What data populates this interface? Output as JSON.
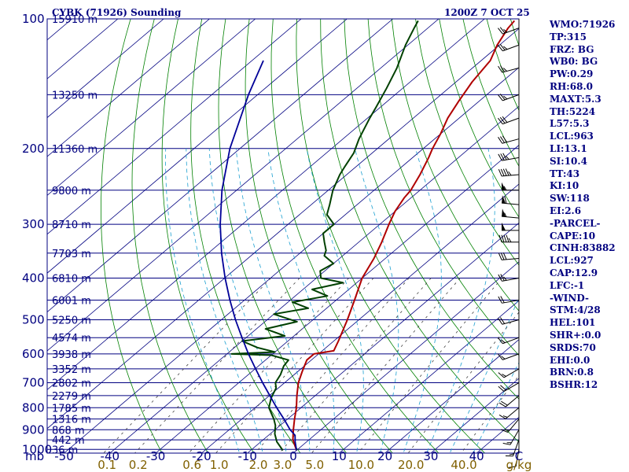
{
  "header": {
    "station": "CYBK (71926) Sounding",
    "time": "1200Z  7 OCT 25"
  },
  "indices": [
    "WMO:71926",
    "TP:315",
    "FRZ: BG",
    "WB0: BG",
    "PW:0.29",
    "RH:68.0",
    "MAXT:5.3",
    "TH:5224",
    "L57:5.3",
    "LCL:963",
    "LI:13.1",
    "SI:10.4",
    "TT:43",
    "KI:10",
    "SW:118",
    "EI:2.6",
    "-PARCEL-",
    "CAPE:10",
    "CINH:83882",
    "LCL:927",
    "CAP:12.9",
    "LFC:-1",
    "-WIND-",
    "STM:4/28",
    "HEL:101",
    "SHR+:0.0",
    "SRDS:70",
    "EHI:0.0",
    "BRN:0.8",
    "BSHR:12"
  ],
  "chart_data": {
    "type": "line",
    "chart_kind": "skew-T log-P sounding",
    "y_axis_unit": "mb",
    "y_axis_scale": "log",
    "y_ticks": [
      "100",
      "200",
      "300",
      "400",
      "500",
      "600",
      "700",
      "800",
      "900",
      "1000"
    ],
    "x_axis_title": "C",
    "x_ticks": [
      "-50",
      "-40",
      "-30",
      "-20",
      "-10",
      "0",
      "10",
      "20",
      "30",
      "40"
    ],
    "mixing_ratio_unit": "g/kg",
    "mixing_ratio_ticks": [
      "0.1",
      "0.2",
      "0.6",
      "1.0",
      "2.0",
      "3.0",
      "5.0",
      "10.0",
      "20.0",
      "40.0"
    ],
    "height_labels": [
      {
        "p": 100,
        "label": "15910 m"
      },
      {
        "p": 150,
        "label": "13250 m"
      },
      {
        "p": 200,
        "label": "11360 m"
      },
      {
        "p": 250,
        "label": "9800 m"
      },
      {
        "p": 300,
        "label": "8710 m"
      },
      {
        "p": 350,
        "label": "7703 m"
      },
      {
        "p": 400,
        "label": "6810 m"
      },
      {
        "p": 450,
        "label": "6001 m"
      },
      {
        "p": 500,
        "label": "5250 m"
      },
      {
        "p": 550,
        "label": "4574 m"
      },
      {
        "p": 600,
        "label": "3938 m"
      },
      {
        "p": 650,
        "label": "3352 m"
      },
      {
        "p": 700,
        "label": "2802 m"
      },
      {
        "p": 750,
        "label": "2279 m"
      },
      {
        "p": 800,
        "label": "1785 m"
      },
      {
        "p": 850,
        "label": "1316 m"
      },
      {
        "p": 900,
        "label": "868 m"
      },
      {
        "p": 950,
        "label": "442 m"
      },
      {
        "p": 1000,
        "label": "36 m"
      }
    ],
    "series": [
      {
        "role": "temperature",
        "color": "#b00000",
        "points": [
          [
            1005,
            0.0
          ],
          [
            950,
            -3.5
          ],
          [
            900,
            -6.0
          ],
          [
            850,
            -8.5
          ],
          [
            800,
            -11.0
          ],
          [
            750,
            -14.0
          ],
          [
            700,
            -17.0
          ],
          [
            660,
            -19.0
          ],
          [
            620,
            -21.0
          ],
          [
            600,
            -21.0
          ],
          [
            590,
            -17.5
          ],
          [
            560,
            -19.0
          ],
          [
            500,
            -22.5
          ],
          [
            450,
            -26.0
          ],
          [
            400,
            -30.0
          ],
          [
            360,
            -32.5
          ],
          [
            330,
            -35.0
          ],
          [
            300,
            -38.0
          ],
          [
            280,
            -40.0
          ],
          [
            260,
            -41.5
          ],
          [
            250,
            -42.0
          ],
          [
            230,
            -44.0
          ],
          [
            210,
            -46.5
          ],
          [
            200,
            -48.0
          ],
          [
            185,
            -50.0
          ],
          [
            170,
            -52.5
          ],
          [
            155,
            -54.5
          ],
          [
            140,
            -56.5
          ],
          [
            125,
            -58.0
          ],
          [
            115,
            -60.5
          ],
          [
            105,
            -62.5
          ],
          [
            101,
            -63.0
          ]
        ]
      },
      {
        "role": "dewpoint",
        "color": "#004000",
        "points": [
          [
            1005,
            -3.0
          ],
          [
            960,
            -6.5
          ],
          [
            920,
            -9.0
          ],
          [
            880,
            -11.0
          ],
          [
            850,
            -13.0
          ],
          [
            800,
            -17.0
          ],
          [
            760,
            -19.0
          ],
          [
            720,
            -20.5
          ],
          [
            700,
            -22.0
          ],
          [
            670,
            -23.0
          ],
          [
            640,
            -24.5
          ],
          [
            620,
            -25.0
          ],
          [
            604,
            -30.0
          ],
          [
            600,
            -39.0
          ],
          [
            594,
            -30.0
          ],
          [
            580,
            -35.0
          ],
          [
            560,
            -40.0
          ],
          [
            545,
            -32.0
          ],
          [
            525,
            -38.0
          ],
          [
            505,
            -33.0
          ],
          [
            485,
            -40.0
          ],
          [
            470,
            -34.0
          ],
          [
            455,
            -39.0
          ],
          [
            440,
            -33.0
          ],
          [
            425,
            -38.0
          ],
          [
            410,
            -33.0
          ],
          [
            400,
            -39.0
          ],
          [
            385,
            -41.0
          ],
          [
            370,
            -40.0
          ],
          [
            355,
            -44.0
          ],
          [
            345,
            -45.0
          ],
          [
            330,
            -47.5
          ],
          [
            315,
            -50.0
          ],
          [
            300,
            -50.0
          ],
          [
            285,
            -54.0
          ],
          [
            270,
            -56.0
          ],
          [
            250,
            -59.0
          ],
          [
            230,
            -61.5
          ],
          [
            220,
            -62.5
          ],
          [
            205,
            -64.0
          ],
          [
            190,
            -66.5
          ],
          [
            170,
            -69.5
          ],
          [
            160,
            -71.0
          ],
          [
            145,
            -73.5
          ],
          [
            130,
            -76.5
          ],
          [
            115,
            -80.5
          ],
          [
            105,
            -83.0
          ],
          [
            101,
            -84.0
          ]
        ]
      },
      {
        "role": "parcel",
        "color": "#000098",
        "points": [
          [
            1005,
            0.0
          ],
          [
            960,
            -2.5
          ],
          [
            927,
            -4.2
          ],
          [
            900,
            -6.7
          ],
          [
            850,
            -10.8
          ],
          [
            800,
            -15.3
          ],
          [
            750,
            -19.9
          ],
          [
            700,
            -24.8
          ],
          [
            650,
            -29.9
          ],
          [
            600,
            -35.3
          ],
          [
            550,
            -40.9
          ],
          [
            500,
            -46.9
          ],
          [
            450,
            -53.2
          ],
          [
            400,
            -59.9
          ],
          [
            350,
            -67.1
          ],
          [
            300,
            -74.8
          ],
          [
            250,
            -83.2
          ],
          [
            200,
            -92.2
          ],
          [
            150,
            -102.0
          ],
          [
            125,
            -107.5
          ]
        ]
      }
    ],
    "wind_barbs": {
      "color": "#000000",
      "levels": [
        {
          "p": 105,
          "dir": 250,
          "spd": 25
        },
        {
          "p": 115,
          "dir": 250,
          "spd": 25
        },
        {
          "p": 130,
          "dir": 255,
          "spd": 25
        },
        {
          "p": 150,
          "dir": 250,
          "spd": 25
        },
        {
          "p": 170,
          "dir": 250,
          "spd": 30
        },
        {
          "p": 190,
          "dir": 255,
          "spd": 30
        },
        {
          "p": 210,
          "dir": 260,
          "spd": 35
        },
        {
          "p": 230,
          "dir": 265,
          "spd": 45
        },
        {
          "p": 250,
          "dir": 270,
          "spd": 55
        },
        {
          "p": 270,
          "dir": 275,
          "spd": 60
        },
        {
          "p": 290,
          "dir": 275,
          "spd": 55
        },
        {
          "p": 310,
          "dir": 270,
          "spd": 50
        },
        {
          "p": 330,
          "dir": 270,
          "spd": 45
        },
        {
          "p": 360,
          "dir": 265,
          "spd": 30
        },
        {
          "p": 400,
          "dir": 260,
          "spd": 25
        },
        {
          "p": 450,
          "dir": 260,
          "spd": 20
        },
        {
          "p": 500,
          "dir": 255,
          "spd": 20
        },
        {
          "p": 550,
          "dir": 250,
          "spd": 15
        },
        {
          "p": 600,
          "dir": 250,
          "spd": 15
        },
        {
          "p": 650,
          "dir": 240,
          "spd": 15
        },
        {
          "p": 700,
          "dir": 240,
          "spd": 20
        },
        {
          "p": 750,
          "dir": 230,
          "spd": 20
        },
        {
          "p": 800,
          "dir": 230,
          "spd": 15
        },
        {
          "p": 850,
          "dir": 220,
          "spd": 15
        },
        {
          "p": 900,
          "dir": 210,
          "spd": 15
        },
        {
          "p": 950,
          "dir": 200,
          "spd": 15
        },
        {
          "p": 1000,
          "dir": 190,
          "spd": 10
        }
      ]
    },
    "colors": {
      "frame": "#000080",
      "isobar": "#000080",
      "isotherm": "#000080",
      "dry_adiabat": "#008000",
      "moist_adiabat": "#1a9fd0",
      "mixing_ratio": "#404040",
      "labels": "#000080",
      "mixing_labels": "#806000"
    }
  }
}
